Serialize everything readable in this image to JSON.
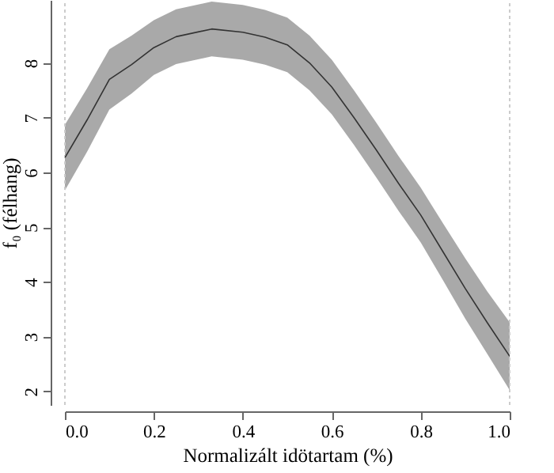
{
  "chart_data": {
    "type": "line",
    "xlabel": "Normalizált idötartam (%)",
    "ylabel": "f₀ (félhang)",
    "x": [
      0,
      0.05,
      0.1,
      0.15,
      0.2,
      0.25,
      0.33,
      0.4,
      0.45,
      0.5,
      0.55,
      0.6,
      0.65,
      0.7,
      0.75,
      0.8,
      0.85,
      0.9,
      0.95,
      1
    ],
    "series": [
      {
        "color": "#333333",
        "values": [
          6.27,
          6.96,
          7.7,
          7.97,
          8.28,
          8.48,
          8.62,
          8.56,
          8.47,
          8.33,
          8.0,
          7.56,
          7.0,
          6.41,
          5.8,
          5.22,
          4.55,
          3.88,
          3.25,
          2.64
        ],
        "lower": [
          5.67,
          6.38,
          7.15,
          7.44,
          7.78,
          7.98,
          8.12,
          8.06,
          7.97,
          7.83,
          7.5,
          7.06,
          6.5,
          5.91,
          5.3,
          4.72,
          4.03,
          3.33,
          2.68,
          2.02
        ],
        "upper": [
          6.87,
          7.54,
          8.25,
          8.5,
          8.78,
          8.98,
          9.12,
          9.06,
          8.97,
          8.83,
          8.5,
          8.06,
          7.5,
          6.91,
          6.3,
          5.72,
          5.07,
          4.43,
          3.82,
          3.26
        ]
      }
    ],
    "xlim": [
      0,
      1
    ],
    "ylim": [
      1.75,
      9.15
    ],
    "xticks": [
      {
        "value": 0,
        "label": "0.0"
      },
      0.2,
      0.4,
      0.6,
      0.8,
      {
        "value": 1,
        "label": "1.0"
      }
    ],
    "yticks": [
      2,
      3,
      4,
      5,
      6,
      7,
      8
    ],
    "ref_lines": [
      {
        "axis": "x",
        "value": 0,
        "color": "#cccccc",
        "line_style": "dotted"
      },
      {
        "axis": "x",
        "value": 1,
        "color": "#cccccc",
        "line_style": "dotted"
      }
    ],
    "marker": "none",
    "line_style": "solid"
  }
}
